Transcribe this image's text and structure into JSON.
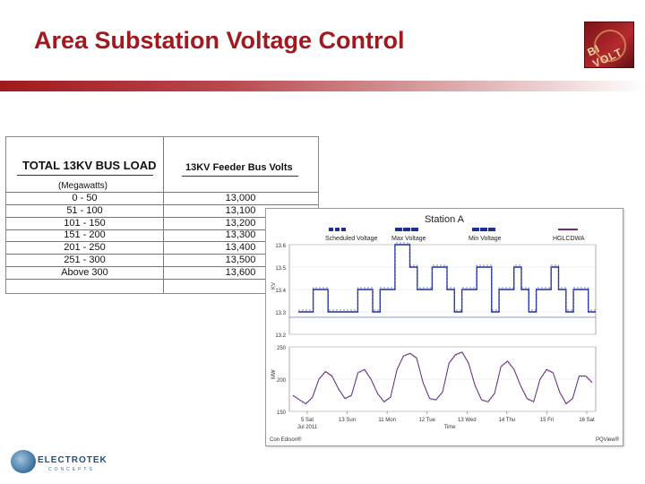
{
  "slide": {
    "title": "Area Substation Voltage Control",
    "logo_top_text": "BI VOLT"
  },
  "table": {
    "header_load": "TOTAL 13KV BUS LOAD",
    "header_volts": "13KV Feeder Bus Volts",
    "subheader": "(Megawatts)",
    "rows": [
      {
        "load": "0 - 50",
        "volts": "13,000"
      },
      {
        "load": "51 - 100",
        "volts": "13,100"
      },
      {
        "load": "101 - 150",
        "volts": "13,200"
      },
      {
        "load": "151 - 200",
        "volts": "13,300"
      },
      {
        "load": "201 - 250",
        "volts": "13,400"
      },
      {
        "load": "251 - 300",
        "volts": "13,500"
      },
      {
        "load": "Above 300",
        "volts": "13,600"
      }
    ]
  },
  "chart_data": {
    "type": "line",
    "title": "Station A",
    "legend": [
      "Scheduled Voltage",
      "Max Voltage",
      "Min Voltage",
      "HGLCDWA"
    ],
    "legend_colors": [
      "#1f2f9a",
      "#1f2f9a",
      "#1f2f9a",
      "#6b2a7a"
    ],
    "upper_panel": {
      "ylabel": "KV",
      "yticks": [
        "13.6",
        "13.5",
        "13.4",
        "13.3",
        "13.2"
      ],
      "ylim": [
        13.2,
        13.6
      ],
      "series": [
        {
          "name": "Scheduled Voltage",
          "values": [
            13.3,
            13.3,
            13.4,
            13.4,
            13.3,
            13.3,
            13.3,
            13.3,
            13.4,
            13.4,
            13.3,
            13.4,
            13.4,
            13.6,
            13.6,
            13.5,
            13.4,
            13.4,
            13.5,
            13.5,
            13.4,
            13.3,
            13.4,
            13.4,
            13.5,
            13.5,
            13.3,
            13.4,
            13.4,
            13.5,
            13.4,
            13.3,
            13.4,
            13.4,
            13.5,
            13.4,
            13.3,
            13.4,
            13.4,
            13.3
          ]
        }
      ]
    },
    "lower_panel": {
      "ylabel": "MW",
      "yticks": [
        "250",
        "200",
        "150"
      ],
      "ylim": [
        150,
        250
      ],
      "series": [
        {
          "name": "HGLCDWA",
          "values": [
            175,
            168,
            162,
            172,
            200,
            212,
            205,
            185,
            170,
            175,
            210,
            215,
            200,
            178,
            165,
            172,
            215,
            236,
            240,
            233,
            195,
            170,
            168,
            180,
            225,
            238,
            242,
            225,
            190,
            168,
            165,
            178,
            220,
            228,
            215,
            190,
            170,
            165,
            200,
            215,
            210,
            180,
            162,
            170,
            205,
            205,
            195
          ]
        }
      ]
    },
    "xticks": [
      "5 Sat",
      "13 Sun",
      "11 Mon",
      "12 Tue",
      "13 Wed",
      "14 Thu",
      "15 Fri",
      "16 Sat"
    ],
    "x_subtitle": "Jul 2011",
    "xlabel": "Time",
    "footer_left": "Con Edison®",
    "footer_right": "PQView®"
  },
  "footer_logo": {
    "name": "ELECTROTEK",
    "sub": "CONCEPTS"
  }
}
